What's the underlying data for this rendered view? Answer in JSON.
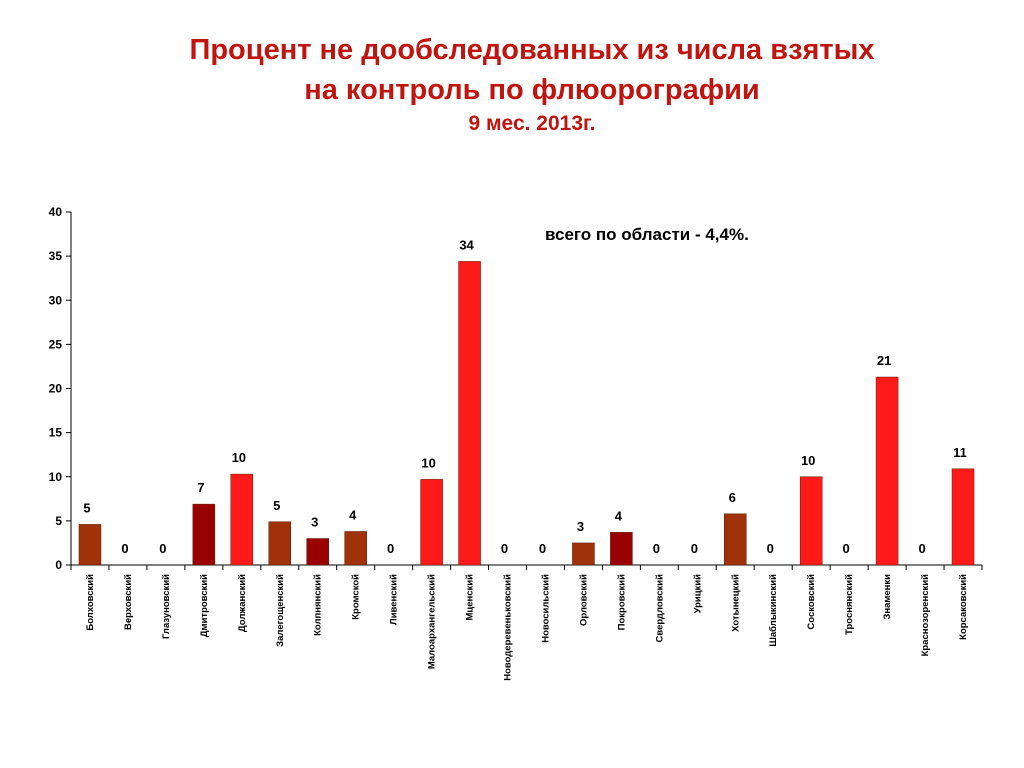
{
  "title_line1": "Процент не дообследованных из числа взятых",
  "title_line2": "на контроль по флюорографии",
  "subtitle": "9 мес. 2013г.",
  "colors": {
    "title": "#c0140f",
    "bar_red": "#ff1a1a",
    "bar_brown": "#a0320a",
    "bar_darkred": "#990000"
  },
  "chart_data": {
    "type": "bar",
    "title": "Процент не дообследованных из числа взятых на контроль по флюорографии",
    "subtitle": "9 мес. 2013г.",
    "annotation": "всего по области - 4,4%.",
    "ylim": [
      0,
      40
    ],
    "yticks": [
      0,
      5,
      10,
      15,
      20,
      25,
      30,
      35,
      40
    ],
    "categories": [
      "Болховский",
      "Верховский",
      "Глазуновский",
      "Дмитровский",
      "Должанский",
      "Залегощенский",
      "Колпнянский",
      "Кромской",
      "Ливенский",
      "Малоархангельский",
      "Мценский",
      "Новодеревеньковский",
      "Новосильский",
      "Орловский",
      "Покровский",
      "Свердловский",
      "Урицкий",
      "Хотынецкий",
      "Шаблыкинский",
      "Сосковский",
      "Троснянский",
      "Знаменки",
      "Краснозоренский",
      "Корсаковский"
    ],
    "values": [
      4.6,
      0,
      0,
      6.9,
      10.3,
      4.9,
      3.0,
      3.8,
      0,
      9.7,
      34.4,
      0,
      0,
      2.5,
      3.7,
      0,
      0,
      5.8,
      0,
      10.0,
      0,
      21.3,
      0,
      10.9
    ],
    "labels": [
      "5",
      "0",
      "0",
      "7",
      "10",
      "5",
      "3",
      "4",
      "0",
      "10",
      "34",
      "0",
      "0",
      "3",
      "4",
      "0",
      "0",
      "6",
      "0",
      "10",
      "0",
      "21",
      "0",
      "11"
    ],
    "bar_colors": [
      "brown",
      "brown",
      "brown",
      "darkred",
      "red",
      "brown",
      "darkred",
      "brown",
      "brown",
      "red",
      "red",
      "brown",
      "brown",
      "brown",
      "darkred",
      "brown",
      "brown",
      "brown",
      "brown",
      "red",
      "brown",
      "red",
      "brown",
      "red"
    ]
  }
}
